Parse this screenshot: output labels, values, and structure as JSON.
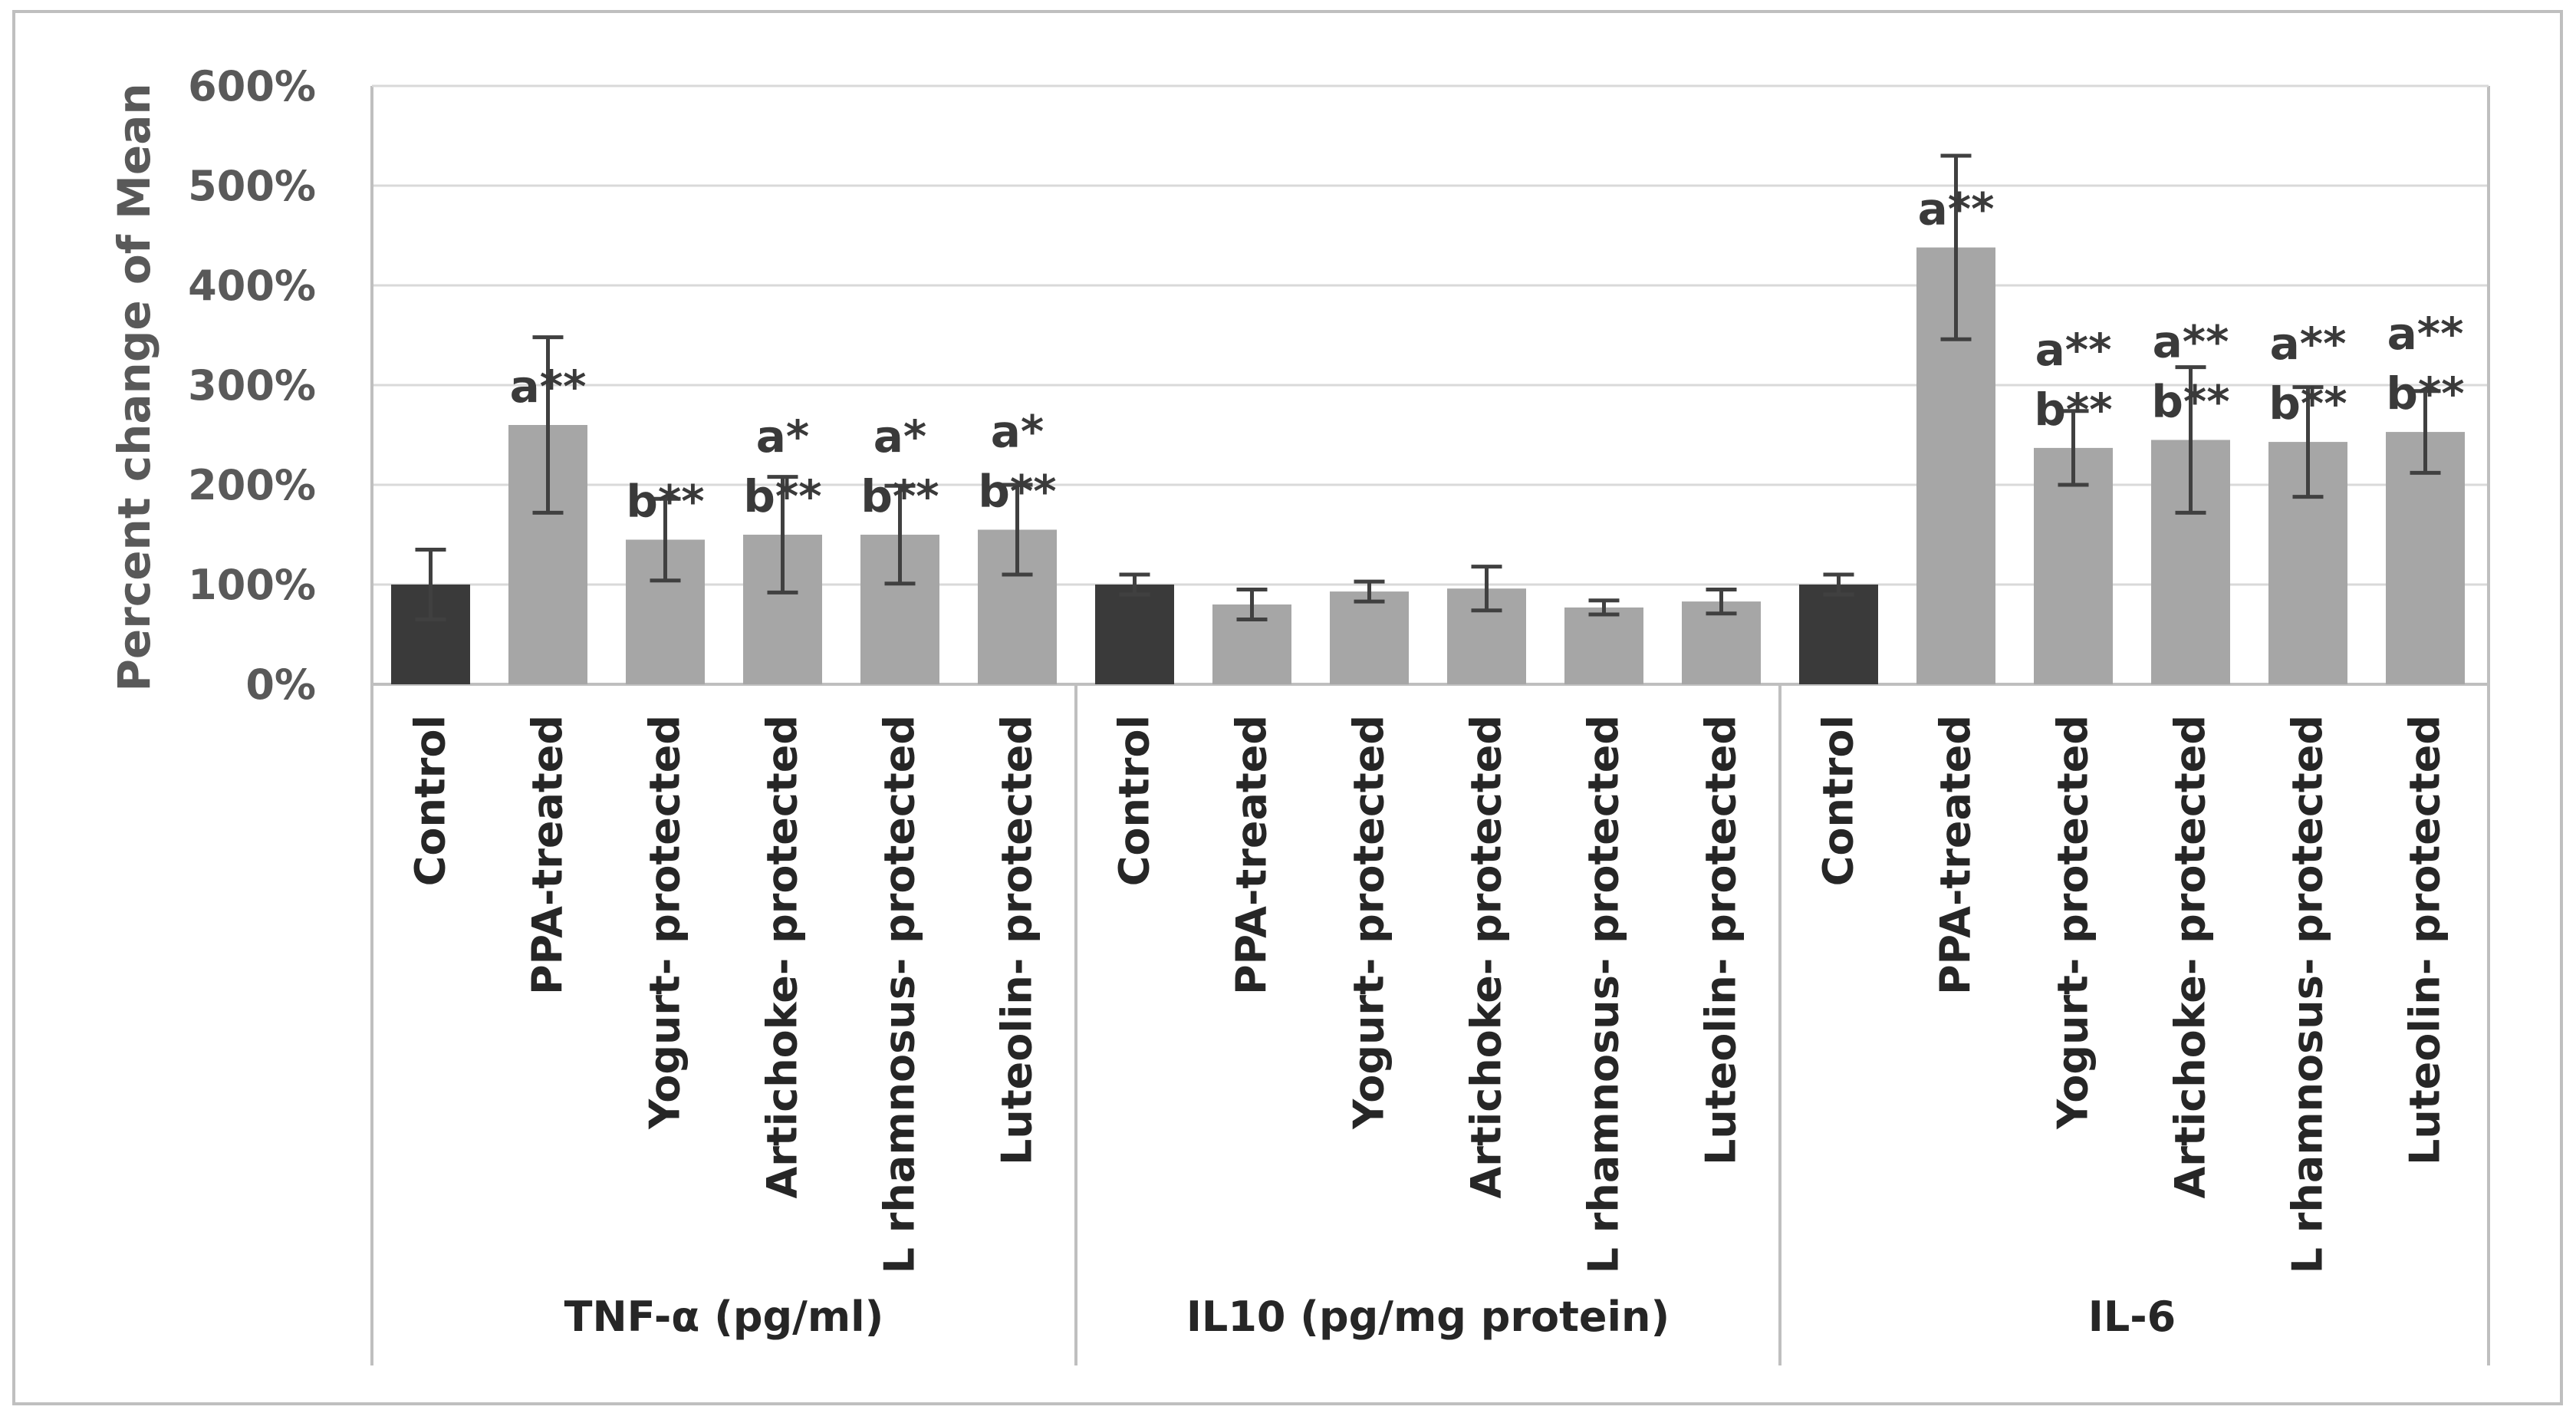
{
  "chart_data": {
    "type": "bar",
    "title": "",
    "xlabel": "",
    "ylabel": "Percent change of Mean",
    "ylim": [
      0,
      600
    ],
    "yticks": [
      "0%",
      "100%",
      "200%",
      "300%",
      "400%",
      "500%",
      "600%"
    ],
    "grid": true,
    "colors": {
      "control": "#3a3a3a",
      "treated": "#a6a6a6",
      "error_bar": "#404040",
      "gridline": "#d9d9d9",
      "frame": "#bfbfbf"
    },
    "groups": [
      {
        "name": "TNF-α (pg/ml)",
        "bars": [
          {
            "label": "Control",
            "value": 100,
            "error": 35,
            "kind": "control",
            "annotation": []
          },
          {
            "label": "PPA-treated",
            "value": 260,
            "error": 88,
            "kind": "treated",
            "annotation": [
              "a**"
            ]
          },
          {
            "label": "Yogurt- protected",
            "value": 145,
            "error": 41,
            "kind": "treated",
            "annotation": [
              "b**"
            ]
          },
          {
            "label": "Artichoke- protected",
            "value": 150,
            "error": 58,
            "kind": "treated",
            "annotation": [
              "a*",
              "b**"
            ]
          },
          {
            "label": "L rhamnosus- protected",
            "value": 150,
            "error": 49,
            "kind": "treated",
            "annotation": [
              "a*",
              "b**"
            ]
          },
          {
            "label": "Luteolin- protected",
            "value": 155,
            "error": 45,
            "kind": "treated",
            "annotation": [
              "a*",
              "b**"
            ]
          }
        ]
      },
      {
        "name": "IL10 (pg/mg protein)",
        "bars": [
          {
            "label": "Control",
            "value": 100,
            "error": 10,
            "kind": "control",
            "annotation": []
          },
          {
            "label": "PPA-treated",
            "value": 80,
            "error": 15,
            "kind": "treated",
            "annotation": []
          },
          {
            "label": "Yogurt- protected",
            "value": 93,
            "error": 10,
            "kind": "treated",
            "annotation": []
          },
          {
            "label": "Artichoke- protected",
            "value": 96,
            "error": 22,
            "kind": "treated",
            "annotation": []
          },
          {
            "label": "L rhamnosus- protected",
            "value": 77,
            "error": 7,
            "kind": "treated",
            "annotation": []
          },
          {
            "label": "Luteolin- protected",
            "value": 83,
            "error": 12,
            "kind": "treated",
            "annotation": []
          }
        ]
      },
      {
        "name": "IL-6",
        "bars": [
          {
            "label": "Control",
            "value": 100,
            "error": 10,
            "kind": "control",
            "annotation": []
          },
          {
            "label": "PPA-treated",
            "value": 438,
            "error": 92,
            "kind": "treated",
            "annotation": [
              "a**"
            ]
          },
          {
            "label": "Yogurt- protected",
            "value": 237,
            "error": 37,
            "kind": "treated",
            "annotation": [
              "a**",
              "b**"
            ]
          },
          {
            "label": "Artichoke- protected",
            "value": 245,
            "error": 73,
            "kind": "treated",
            "annotation": [
              "a**",
              "b**"
            ]
          },
          {
            "label": "L rhamnosus- protected",
            "value": 243,
            "error": 55,
            "kind": "treated",
            "annotation": [
              "a**",
              "b**"
            ]
          },
          {
            "label": "Luteolin- protected",
            "value": 253,
            "error": 41,
            "kind": "treated",
            "annotation": [
              "a**",
              "b**"
            ]
          }
        ]
      }
    ]
  }
}
